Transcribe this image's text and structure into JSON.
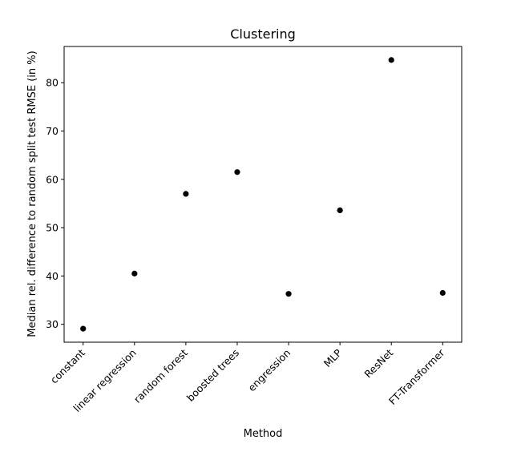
{
  "chart_data": {
    "type": "scatter",
    "title": "Clustering",
    "xlabel": "Method",
    "ylabel": "Median rel. difference to random split test RMSE (in %)",
    "categories": [
      "constant",
      "linear regression",
      "random forest",
      "boosted trees",
      "engression",
      "MLP",
      "ResNet",
      "FT-Transformer"
    ],
    "values": [
      29.1,
      40.5,
      57.0,
      61.5,
      36.3,
      53.6,
      84.7,
      36.5
    ],
    "ylim": [
      26.3,
      87.5
    ],
    "yticks": [
      30,
      40,
      50,
      60,
      70,
      80
    ],
    "grid": false,
    "legend": "none",
    "marker_color": "#000000"
  }
}
